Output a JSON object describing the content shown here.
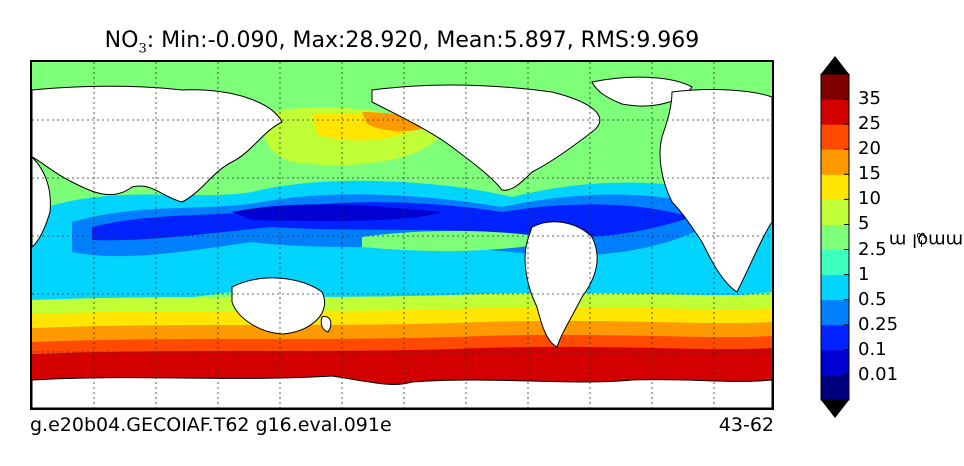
{
  "title": {
    "species_main": "NO",
    "species_sub": "3",
    "stats": ": Min:-0.090, Max:28.920, Mean:5.897, RMS:9.969"
  },
  "caption": {
    "left": "g.e20b04.GECOIAF.T62 g16.eval.091e",
    "right": "43-62"
  },
  "colorbar": {
    "unit_main": "mmol m",
    "unit_sup": "−3",
    "levels": [
      "0.01",
      "0.1",
      "0.25",
      "0.5",
      "1",
      "2.5",
      "5",
      "10",
      "15",
      "20",
      "25",
      "35"
    ],
    "colors": [
      "#00007f",
      "#0000d0",
      "#0022ff",
      "#0080ff",
      "#00d4ff",
      "#3dffc0",
      "#7dff7a",
      "#c0ff36",
      "#ffe500",
      "#ff9900",
      "#ff4a00",
      "#d40000",
      "#7f0000"
    ]
  }
}
